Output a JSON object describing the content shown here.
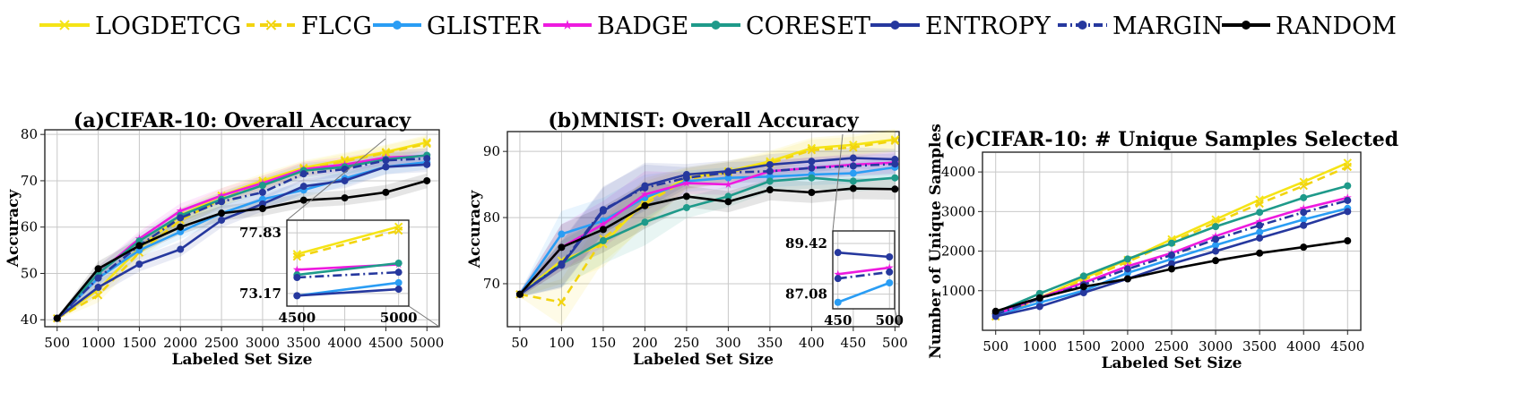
{
  "legend": {
    "entries": [
      {
        "name": "LOGDETCG",
        "color": "#f5e416",
        "dash": "",
        "marker": "x"
      },
      {
        "name": "FLCG",
        "color": "#f2d40f",
        "dash": "9,6",
        "marker": "x"
      },
      {
        "name": "GLISTER",
        "color": "#2a9df4",
        "dash": "",
        "marker": "circle"
      },
      {
        "name": "BADGE",
        "color": "#ee1adf",
        "dash": "",
        "marker": "star"
      },
      {
        "name": "CORESET",
        "color": "#1e9a8a",
        "dash": "",
        "marker": "circle"
      },
      {
        "name": "ENTROPY",
        "color": "#26389e",
        "dash": "",
        "marker": "circle"
      },
      {
        "name": "MARGIN",
        "color": "#26389e",
        "dash": "10,4,2,4",
        "marker": "circle"
      },
      {
        "name": "RANDOM",
        "color": "#000000",
        "dash": "",
        "marker": "circle"
      }
    ]
  },
  "chart_data": [
    {
      "type": "line",
      "title": "(a)CIFAR-10: Overall Accuracy",
      "xlabel": "Labeled Set Size",
      "ylabel": "Accuracy",
      "x": [
        500,
        1000,
        1500,
        2000,
        2500,
        3000,
        3500,
        4000,
        4500,
        5000
      ],
      "xlim": [
        350,
        5150
      ],
      "ylim": [
        38.5,
        81
      ],
      "yticks": [
        40,
        50,
        60,
        70,
        80
      ],
      "grid": true,
      "series": [
        {
          "name": "LOGDETCG",
          "values": [
            40.3,
            46.5,
            55.5,
            62.5,
            66.8,
            70.0,
            72.8,
            74.5,
            76.2,
            78.3
          ]
        },
        {
          "name": "FLCG",
          "values": [
            40.3,
            45.3,
            54.5,
            61.5,
            66.0,
            69.5,
            72.5,
            74.2,
            76.0,
            78.0
          ]
        },
        {
          "name": "GLISTER",
          "values": [
            40.3,
            49.0,
            55.0,
            59.0,
            63.0,
            66.0,
            68.0,
            70.5,
            73.0,
            74.0
          ]
        },
        {
          "name": "BADGE",
          "values": [
            40.3,
            50.0,
            57.5,
            63.5,
            66.8,
            69.5,
            72.5,
            73.5,
            75.0,
            75.4
          ]
        },
        {
          "name": "CORESET",
          "values": [
            40.3,
            50.0,
            57.0,
            62.5,
            66.0,
            69.0,
            72.2,
            73.0,
            74.6,
            75.5
          ]
        },
        {
          "name": "ENTROPY",
          "values": [
            40.3,
            47.0,
            52.0,
            55.2,
            61.5,
            65.0,
            68.8,
            70.0,
            73.0,
            73.5
          ]
        },
        {
          "name": "MARGIN",
          "values": [
            40.3,
            49.0,
            56.0,
            62.0,
            65.5,
            67.5,
            71.5,
            72.5,
            74.4,
            74.8
          ]
        },
        {
          "name": "RANDOM",
          "values": [
            40.3,
            51.0,
            56.0,
            60.0,
            63.0,
            64.0,
            65.8,
            66.3,
            67.5,
            70.0
          ]
        }
      ],
      "inset": {
        "xlabels": [
          "4500",
          "5000"
        ],
        "ylabels": [
          "77.83",
          "73.17"
        ],
        "xlim": [
          4450,
          5050
        ],
        "ylim": [
          72.2,
          78.8
        ]
      }
    },
    {
      "type": "line",
      "title": "(b)MNIST: Overall Accuracy",
      "xlabel": "Labeled Set Size",
      "ylabel": "Accuracy",
      "x": [
        50,
        100,
        150,
        200,
        250,
        300,
        350,
        400,
        450,
        500
      ],
      "xlim": [
        35,
        505
      ],
      "ylim": [
        63.5,
        93
      ],
      "yticks": [
        70,
        80,
        90
      ],
      "grid": true,
      "series": [
        {
          "name": "LOGDETCG",
          "values": [
            68.4,
            73.5,
            76.0,
            82.5,
            86.0,
            87.0,
            88.5,
            90.5,
            91.0,
            91.8
          ]
        },
        {
          "name": "FLCG",
          "values": [
            68.4,
            67.2,
            76.8,
            82.0,
            85.8,
            86.8,
            88.2,
            90.2,
            90.6,
            91.6
          ]
        },
        {
          "name": "GLISTER",
          "values": [
            68.4,
            77.5,
            79.5,
            83.0,
            85.5,
            86.0,
            86.2,
            86.5,
            86.7,
            87.6
          ]
        },
        {
          "name": "BADGE",
          "values": [
            68.4,
            75.5,
            79.0,
            83.5,
            85.2,
            85.0,
            87.0,
            87.5,
            88.0,
            88.3
          ]
        },
        {
          "name": "CORESET",
          "values": [
            68.4,
            73.0,
            76.5,
            79.3,
            81.5,
            83.2,
            85.5,
            86.0,
            85.5,
            86.0
          ]
        },
        {
          "name": "ENTROPY",
          "values": [
            68.4,
            72.8,
            81.0,
            84.8,
            86.5,
            87.0,
            88.0,
            88.5,
            89.0,
            88.8
          ]
        },
        {
          "name": "MARGIN",
          "values": [
            68.4,
            73.0,
            81.2,
            84.5,
            86.0,
            86.8,
            87.0,
            87.5,
            87.8,
            88.1
          ]
        },
        {
          "name": "RANDOM",
          "values": [
            68.4,
            75.5,
            78.2,
            81.8,
            83.2,
            82.4,
            84.2,
            83.8,
            84.4,
            84.3
          ]
        }
      ],
      "inset": {
        "xlabels": [
          "450",
          "500"
        ],
        "ylabels": [
          "89.42",
          "87.08"
        ],
        "xlim": [
          445,
          505
        ],
        "ylim": [
          86.4,
          90.0
        ]
      }
    },
    {
      "type": "line",
      "title": "(c)CIFAR-10: # Unique Samples Selected",
      "xlabel": "Labeled Set Size",
      "ylabel": "Number of Unique Samples",
      "x": [
        500,
        1000,
        1500,
        2000,
        2500,
        3000,
        3500,
        4000,
        4500
      ],
      "xlim": [
        350,
        4650
      ],
      "ylim": [
        0,
        4500
      ],
      "yticks": [
        1000,
        2000,
        3000,
        4000
      ],
      "grid": true,
      "series": [
        {
          "name": "LOGDETCG",
          "values": [
            350,
            820,
            1320,
            1780,
            2300,
            2800,
            3300,
            3750,
            4230
          ]
        },
        {
          "name": "FLCG",
          "values": [
            350,
            800,
            1270,
            1730,
            2230,
            2720,
            3200,
            3650,
            4130
          ]
        },
        {
          "name": "GLISTER",
          "values": [
            380,
            700,
            1000,
            1450,
            1800,
            2150,
            2480,
            2800,
            3080
          ]
        },
        {
          "name": "BADGE",
          "values": [
            400,
            820,
            1200,
            1620,
            1950,
            2380,
            2750,
            3080,
            3350
          ]
        },
        {
          "name": "CORESET",
          "values": [
            450,
            930,
            1370,
            1800,
            2200,
            2620,
            2980,
            3350,
            3650
          ]
        },
        {
          "name": "ENTROPY",
          "values": [
            350,
            600,
            950,
            1300,
            1680,
            2000,
            2330,
            2650,
            3000
          ]
        },
        {
          "name": "MARGIN",
          "values": [
            400,
            800,
            1150,
            1550,
            1900,
            2300,
            2650,
            2980,
            3280
          ]
        },
        {
          "name": "RANDOM",
          "values": [
            480,
            820,
            1100,
            1300,
            1550,
            1760,
            1950,
            2100,
            2260
          ]
        }
      ]
    }
  ]
}
